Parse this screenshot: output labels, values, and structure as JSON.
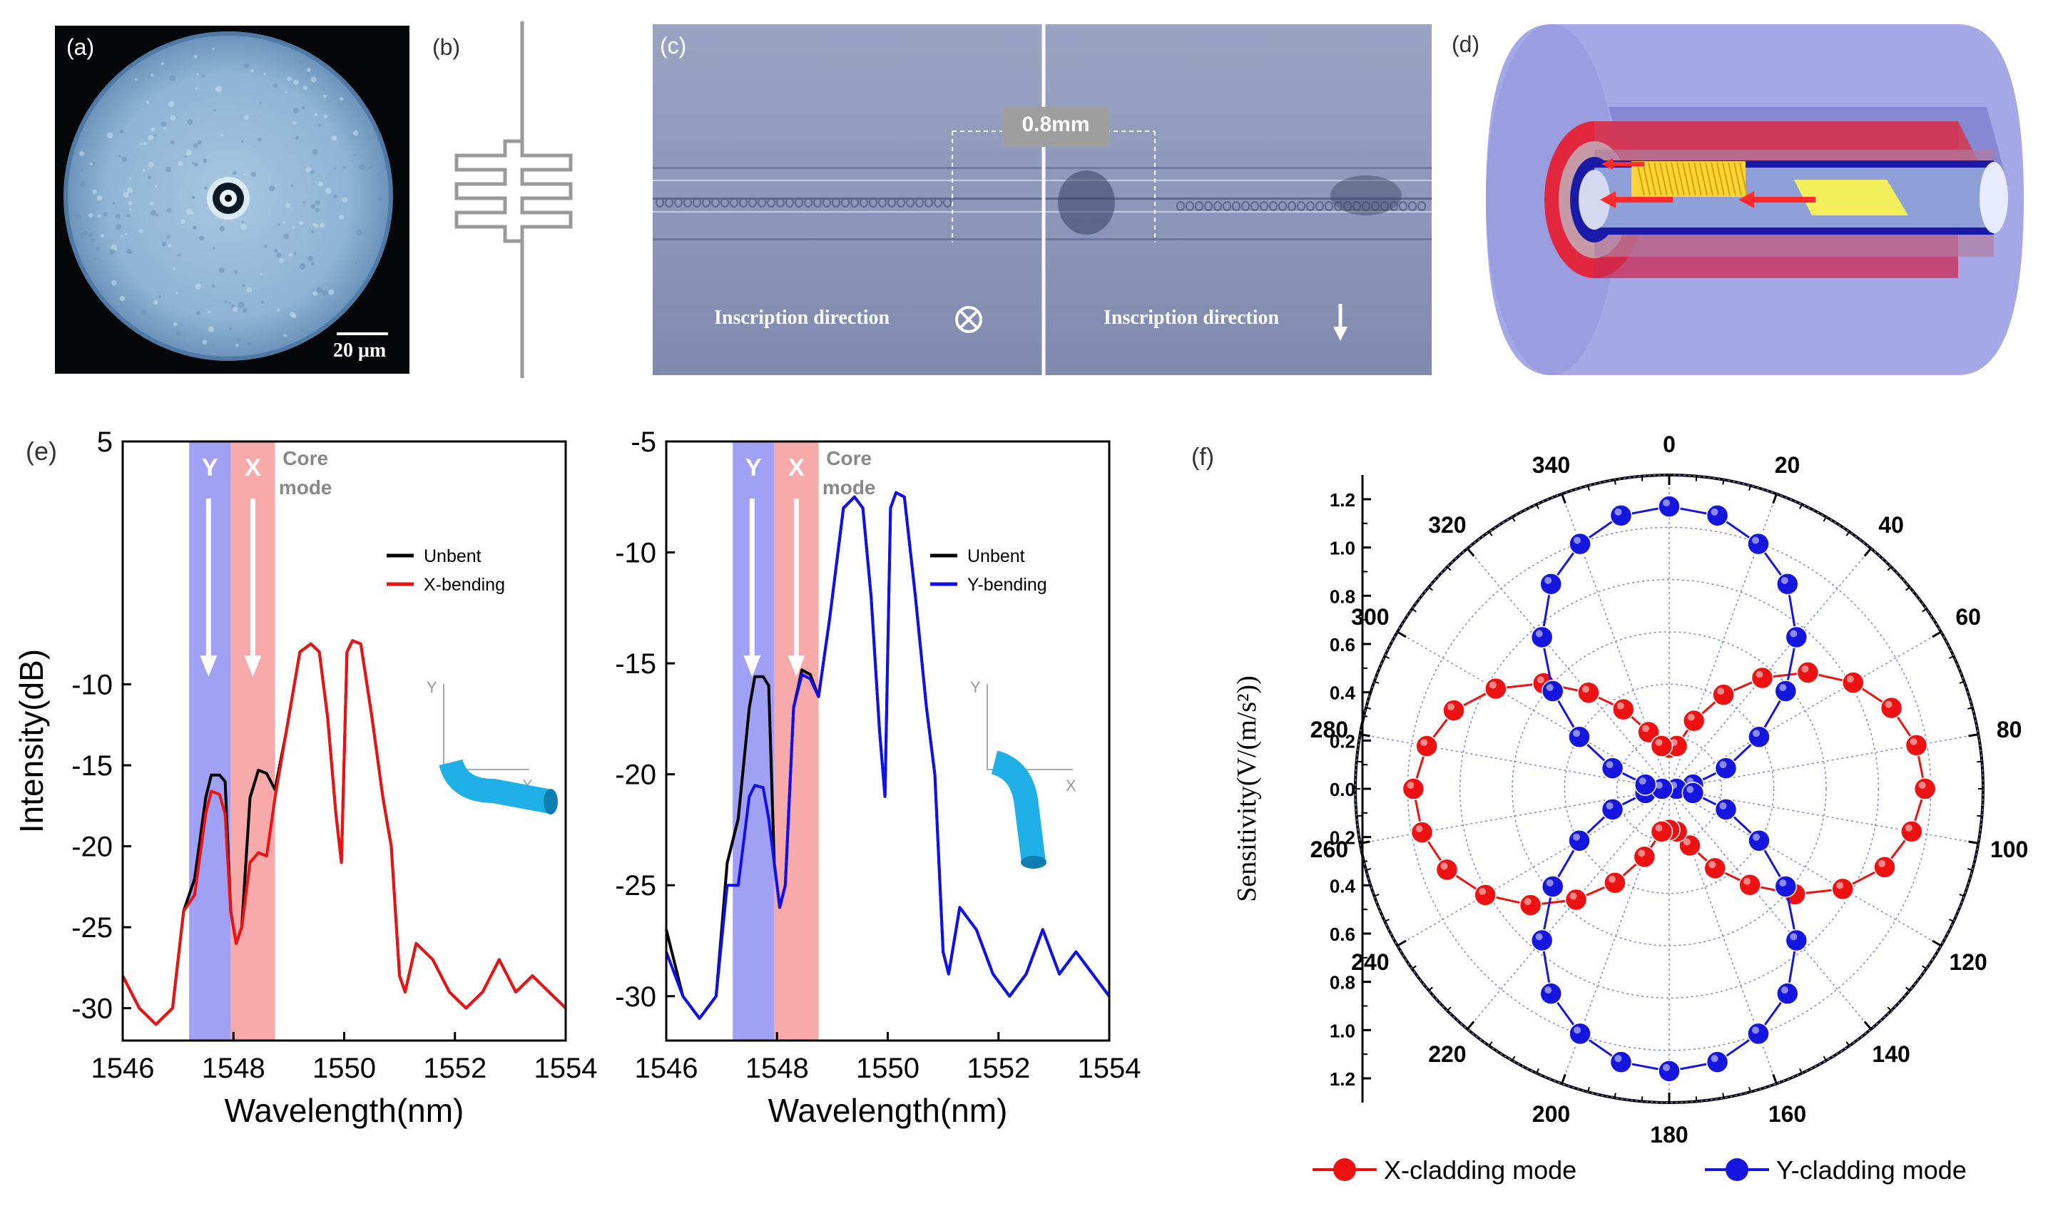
{
  "figure": {
    "labels": {
      "a": "(a)",
      "b": "(b)",
      "c": "(c)",
      "d": "(d)",
      "e": "(e)",
      "f": "(f)"
    }
  },
  "panel_a": {
    "scale_bar": "20 μm"
  },
  "panel_c": {
    "distance": "0.8mm",
    "left_caption": "Inscription direction",
    "right_caption": "Inscription direction"
  },
  "panel_e": {
    "band_y": "Y",
    "band_x": "X",
    "core_mode": [
      "Core",
      "mode"
    ],
    "ylabel": "Intensity(dB)",
    "xlabel": "Wavelength(nm)",
    "axis_y": "Y",
    "axis_x": "X",
    "colors": {
      "unbent": "#000000",
      "x_bending": "#ee1111",
      "y_bending": "#1010ee",
      "y_band": "#8f8ff2",
      "x_band": "#f79a9a"
    }
  },
  "panel_f": {
    "ylabel": "Sensitivity(V/(m/s²))",
    "colors": {
      "x_mode": "#ee1111",
      "y_mode": "#1515e0"
    }
  },
  "chart_data": [
    {
      "type": "line",
      "title": "",
      "xlabel": "Wavelength(nm)",
      "ylabel": "Intensity(dB)",
      "xlim": [
        1546,
        1554
      ],
      "ylim": [
        -32,
        5
      ],
      "x_ticks": [
        "1546",
        "1548",
        "1550",
        "1552",
        "1554"
      ],
      "y_ticks": [
        "5",
        "-10",
        "-15",
        "-20",
        "-25",
        "-30"
      ],
      "legend": [
        "Unbent",
        "X-bending"
      ],
      "series": [
        {
          "name": "Unbent",
          "x": [
            1546,
            1546.3,
            1546.6,
            1546.9,
            1547.1,
            1547.3,
            1547.5,
            1547.6,
            1547.75,
            1547.85,
            1547.95,
            1548.05,
            1548.15,
            1548.3,
            1548.45,
            1548.6,
            1548.75,
            1548.95,
            1549.2,
            1549.4,
            1549.55,
            1549.7,
            1549.85,
            1549.95,
            1550.05,
            1550.15,
            1550.3,
            1550.5,
            1550.7,
            1550.85,
            1551,
            1551.1,
            1551.3,
            1551.6,
            1551.9,
            1552.2,
            1552.5,
            1552.8,
            1553.1,
            1553.4,
            1553.7,
            1554
          ],
          "y": [
            -28,
            -30,
            -31,
            -30,
            -24,
            -22,
            -17,
            -15.6,
            -15.6,
            -16,
            -24,
            -26,
            -25,
            -17,
            -15.3,
            -15.5,
            -16.5,
            -13,
            -8,
            -7.5,
            -8,
            -12,
            -18,
            -21,
            -8,
            -7.3,
            -7.5,
            -12,
            -17,
            -20,
            -28,
            -29,
            -26,
            -27,
            -29,
            -30,
            -29,
            -27,
            -29,
            -28,
            -29,
            -30
          ]
        },
        {
          "name": "X-bending",
          "x": [
            1546,
            1546.3,
            1546.6,
            1546.9,
            1547.1,
            1547.3,
            1547.5,
            1547.6,
            1547.75,
            1547.85,
            1547.95,
            1548.05,
            1548.15,
            1548.3,
            1548.45,
            1548.6,
            1548.75,
            1548.95,
            1549.2,
            1549.4,
            1549.55,
            1549.7,
            1549.85,
            1549.95,
            1550.05,
            1550.15,
            1550.3,
            1550.5,
            1550.7,
            1550.85,
            1551,
            1551.1,
            1551.3,
            1551.6,
            1551.9,
            1552.2,
            1552.5,
            1552.8,
            1553.1,
            1553.4,
            1553.7,
            1554
          ],
          "y": [
            -28,
            -30,
            -31,
            -30,
            -24,
            -23,
            -18,
            -16.6,
            -16.8,
            -18,
            -24,
            -26,
            -25,
            -21,
            -20.4,
            -20.6,
            -17,
            -13,
            -8,
            -7.5,
            -8,
            -12,
            -18,
            -21,
            -8,
            -7.3,
            -7.5,
            -12,
            -17,
            -20,
            -28,
            -29,
            -26,
            -27,
            -29,
            -30,
            -29,
            -27,
            -29,
            -28,
            -29,
            -30
          ]
        }
      ]
    },
    {
      "type": "line",
      "title": "",
      "xlabel": "Wavelength(nm)",
      "ylabel": "",
      "xlim": [
        1546,
        1554
      ],
      "ylim": [
        -32,
        -5
      ],
      "x_ticks": [
        "1546",
        "1548",
        "1550",
        "1552",
        "1554"
      ],
      "y_ticks": [
        "-5",
        "-10",
        "-15",
        "-20",
        "-25",
        "-30"
      ],
      "legend": [
        "Unbent",
        "Y-bending"
      ],
      "series": [
        {
          "name": "Unbent",
          "x": [
            1546,
            1546.3,
            1546.6,
            1546.9,
            1547.1,
            1547.3,
            1547.5,
            1547.6,
            1547.75,
            1547.85,
            1547.95,
            1548.05,
            1548.15,
            1548.3,
            1548.45,
            1548.6,
            1548.75,
            1548.95,
            1549.2,
            1549.4,
            1549.55,
            1549.7,
            1549.85,
            1549.95,
            1550.05,
            1550.15,
            1550.3,
            1550.5,
            1550.7,
            1550.85,
            1551,
            1551.1,
            1551.3,
            1551.6,
            1551.9,
            1552.2,
            1552.5,
            1552.8,
            1553.1,
            1553.4,
            1553.7,
            1554
          ],
          "y": [
            -27,
            -30,
            -31,
            -30,
            -24,
            -22,
            -17,
            -15.6,
            -15.6,
            -16,
            -24,
            -26,
            -25,
            -17,
            -15.3,
            -15.5,
            -16.5,
            -13,
            -8,
            -7.5,
            -8,
            -12,
            -18,
            -21,
            -8,
            -7.3,
            -7.5,
            -12,
            -17,
            -20,
            -28,
            -29,
            -26,
            -27,
            -29,
            -30,
            -29,
            -27,
            -29,
            -28,
            -29,
            -30
          ]
        },
        {
          "name": "Y-bending",
          "x": [
            1546,
            1546.3,
            1546.6,
            1546.9,
            1547.1,
            1547.3,
            1547.5,
            1547.6,
            1547.75,
            1547.85,
            1547.95,
            1548.05,
            1548.15,
            1548.3,
            1548.45,
            1548.6,
            1548.75,
            1548.95,
            1549.2,
            1549.4,
            1549.55,
            1549.7,
            1549.85,
            1549.95,
            1550.05,
            1550.15,
            1550.3,
            1550.5,
            1550.7,
            1550.85,
            1551,
            1551.1,
            1551.3,
            1551.6,
            1551.9,
            1552.2,
            1552.5,
            1552.8,
            1553.1,
            1553.4,
            1553.7,
            1554
          ],
          "y": [
            -28,
            -30,
            -31,
            -30,
            -25,
            -25,
            -21,
            -20.5,
            -20.6,
            -22,
            -24,
            -26,
            -25,
            -17,
            -15.5,
            -15.7,
            -16.5,
            -13,
            -8,
            -7.5,
            -8,
            -12,
            -18,
            -21,
            -8,
            -7.3,
            -7.5,
            -12,
            -17,
            -20,
            -28,
            -29,
            -26,
            -27,
            -29,
            -30,
            -29,
            -27,
            -29,
            -28,
            -29,
            -30
          ]
        }
      ]
    },
    {
      "type": "polar",
      "title": "",
      "ylabel": "Sensitivity(V/(m/s²))",
      "rlim": [
        0,
        1.2
      ],
      "angle_ticks": [
        "0",
        "20",
        "40",
        "60",
        "80",
        "100",
        "120",
        "140",
        "160",
        "180",
        "200",
        "220",
        "240",
        "260",
        "280",
        "300",
        "320",
        "340"
      ],
      "radial_ticks": [
        "0.0",
        "0.2",
        "0.4",
        "0.6",
        "0.8",
        "1.0",
        "1.2"
      ],
      "legend": [
        "X-cladding mode",
        "Y-cladding mode"
      ],
      "series": [
        {
          "name": "X-cladding mode",
          "theta": [
            0,
            10,
            20,
            30,
            40,
            50,
            60,
            70,
            80,
            90,
            100,
            110,
            120,
            130,
            140,
            150,
            160,
            170,
            180,
            190,
            200,
            210,
            220,
            230,
            240,
            250,
            260,
            270,
            280,
            290,
            300,
            310,
            320,
            330,
            340,
            350
          ],
          "r": [
            0.17,
            0.18,
            0.3,
            0.45,
            0.6,
            0.75,
            0.88,
            0.98,
            1.04,
            1.06,
            1.02,
            0.95,
            0.83,
            0.68,
            0.52,
            0.38,
            0.25,
            0.18,
            0.17,
            0.18,
            0.3,
            0.45,
            0.6,
            0.75,
            0.88,
            0.98,
            1.04,
            1.06,
            1.02,
            0.95,
            0.83,
            0.68,
            0.52,
            0.38,
            0.25,
            0.18
          ]
        },
        {
          "name": "Y-cladding mode",
          "theta": [
            0,
            10,
            20,
            30,
            40,
            50,
            60,
            70,
            80,
            90,
            100,
            110,
            120,
            130,
            140,
            150,
            160,
            170,
            180,
            190,
            200,
            210,
            220,
            230,
            240,
            250,
            260,
            270,
            280,
            290,
            300,
            310,
            320,
            330,
            340,
            350
          ],
          "r": [
            1.17,
            1.15,
            1.08,
            0.98,
            0.82,
            0.63,
            0.43,
            0.25,
            0.1,
            0.03,
            0.1,
            0.25,
            0.43,
            0.63,
            0.82,
            0.98,
            1.08,
            1.15,
            1.17,
            1.15,
            1.08,
            0.98,
            0.82,
            0.63,
            0.43,
            0.25,
            0.1,
            0.03,
            0.1,
            0.25,
            0.43,
            0.63,
            0.82,
            0.98,
            1.08,
            1.15
          ]
        }
      ]
    }
  ]
}
